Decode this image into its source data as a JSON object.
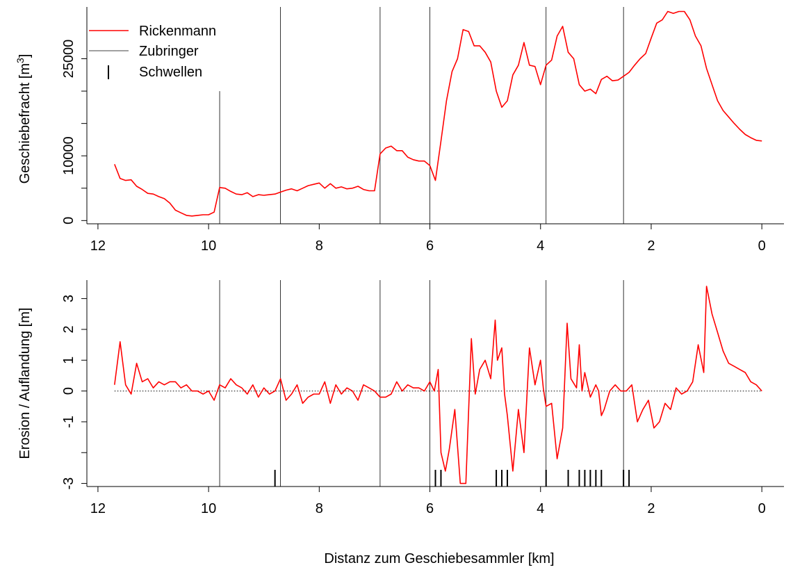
{
  "xlabel": "Distanz zum Geschiebesammler [km]",
  "colors": {
    "series": "#ff0000",
    "tributary": "#000000",
    "axis": "#000000"
  },
  "legend": {
    "placement": "top-left",
    "entries": [
      {
        "label": "Rickenmann",
        "symbol": "red-line"
      },
      {
        "label": "Zubringer",
        "symbol": "thin-black-line"
      },
      {
        "label": "Schwellen",
        "symbol": "vertical-tick"
      }
    ]
  },
  "chart_data": [
    {
      "type": "line",
      "ylabel_prefix": "Geschiebefracht  [m",
      "ylabel_sup": "3",
      "ylabel_suffix": "]",
      "xlim": [
        12.2,
        -0.4
      ],
      "ylim": [
        -500,
        33000
      ],
      "x_reversed": true,
      "x_ticks": [
        12,
        10,
        8,
        6,
        4,
        2,
        0
      ],
      "y_ticks": [
        0,
        5000,
        10000,
        15000,
        20000,
        25000
      ],
      "y_tick_labels": [
        "0",
        "",
        "10000",
        "",
        "",
        "25000"
      ],
      "tributaries_km": [
        9.8,
        8.7,
        6.9,
        6.0,
        3.9,
        2.5
      ],
      "tributary_top": [
        20000,
        null,
        null,
        null,
        null,
        null
      ],
      "series": [
        {
          "name": "Rickenmann",
          "x": [
            11.7,
            11.6,
            11.5,
            11.4,
            11.3,
            11.2,
            11.1,
            11.0,
            10.9,
            10.8,
            10.7,
            10.6,
            10.5,
            10.4,
            10.3,
            10.2,
            10.1,
            10.0,
            9.9,
            9.8,
            9.7,
            9.6,
            9.5,
            9.4,
            9.3,
            9.2,
            9.1,
            9.0,
            8.9,
            8.8,
            8.7,
            8.6,
            8.5,
            8.4,
            8.3,
            8.2,
            8.1,
            8.0,
            7.9,
            7.8,
            7.7,
            7.6,
            7.5,
            7.4,
            7.3,
            7.2,
            7.1,
            7.0,
            6.9,
            6.8,
            6.7,
            6.6,
            6.5,
            6.4,
            6.3,
            6.2,
            6.1,
            6.0,
            5.9,
            5.8,
            5.7,
            5.6,
            5.5,
            5.4,
            5.3,
            5.2,
            5.1,
            5.0,
            4.9,
            4.8,
            4.7,
            4.6,
            4.5,
            4.4,
            4.3,
            4.2,
            4.1,
            4.0,
            3.9,
            3.8,
            3.7,
            3.6,
            3.5,
            3.4,
            3.3,
            3.2,
            3.1,
            3.0,
            2.9,
            2.8,
            2.7,
            2.6,
            2.5,
            2.4,
            2.3,
            2.2,
            2.1,
            2.0,
            1.9,
            1.8,
            1.7,
            1.6,
            1.5,
            1.4,
            1.3,
            1.2,
            1.1,
            1.0,
            0.9,
            0.8,
            0.7,
            0.6,
            0.5,
            0.4,
            0.3,
            0.2,
            0.1,
            0.0
          ],
          "y": [
            8700,
            6500,
            6200,
            6300,
            5300,
            4800,
            4200,
            4100,
            3700,
            3400,
            2700,
            1600,
            1200,
            800,
            700,
            800,
            900,
            900,
            1300,
            5100,
            5000,
            4500,
            4100,
            4000,
            4300,
            3700,
            4000,
            3900,
            4000,
            4100,
            4400,
            4700,
            4900,
            4600,
            5000,
            5400,
            5600,
            5800,
            5000,
            5700,
            5000,
            5200,
            4900,
            5000,
            5300,
            4800,
            4600,
            4600,
            10300,
            11200,
            11500,
            10800,
            10800,
            9800,
            9400,
            9200,
            9200,
            8500,
            6200,
            12300,
            18500,
            23000,
            25000,
            29500,
            29200,
            27000,
            27000,
            26000,
            24500,
            20000,
            17500,
            18500,
            22500,
            24000,
            27500,
            24000,
            23800,
            21000,
            24000,
            24800,
            28500,
            30000,
            26000,
            25000,
            21000,
            20000,
            20300,
            19600,
            21800,
            22300,
            21600,
            21700,
            22300,
            22900,
            24000,
            25000,
            25800,
            28200,
            30500,
            31000,
            32300,
            32000,
            32300,
            32300,
            31000,
            28500,
            27000,
            23500,
            21000,
            18500,
            17000,
            16000,
            15000,
            14100,
            13300,
            12800,
            12400,
            12300
          ]
        }
      ]
    },
    {
      "type": "line",
      "ylabel": "Erosion / Auflandung [m]",
      "xlim": [
        12.2,
        -0.4
      ],
      "ylim": [
        -3.1,
        3.6
      ],
      "x_reversed": true,
      "x_ticks": [
        12,
        10,
        8,
        6,
        4,
        2,
        0
      ],
      "y_ticks": [
        -3,
        -2,
        -1,
        0,
        1,
        2,
        3
      ],
      "y_tick_labels": [
        "-3",
        "",
        "-1",
        "0",
        "1",
        "2",
        "3"
      ],
      "zero_line": "dotted",
      "tributaries_km": [
        9.8,
        8.7,
        6.9,
        6.0,
        3.9,
        2.5
      ],
      "schwellen_km": [
        8.8,
        5.9,
        5.8,
        4.8,
        4.7,
        4.6,
        3.9,
        3.5,
        3.3,
        3.2,
        3.1,
        3.0,
        2.9,
        2.5,
        2.4
      ],
      "series": [
        {
          "name": "Rickenmann",
          "x": [
            11.7,
            11.6,
            11.5,
            11.4,
            11.3,
            11.2,
            11.1,
            11.0,
            10.9,
            10.8,
            10.7,
            10.6,
            10.5,
            10.4,
            10.3,
            10.2,
            10.1,
            10.0,
            9.9,
            9.8,
            9.7,
            9.6,
            9.5,
            9.4,
            9.3,
            9.2,
            9.1,
            9.0,
            8.9,
            8.8,
            8.7,
            8.6,
            8.5,
            8.4,
            8.3,
            8.2,
            8.1,
            8.0,
            7.9,
            7.8,
            7.7,
            7.6,
            7.5,
            7.4,
            7.3,
            7.2,
            7.1,
            7.0,
            6.9,
            6.8,
            6.7,
            6.6,
            6.5,
            6.4,
            6.3,
            6.2,
            6.1,
            6.0,
            5.92,
            5.85,
            5.8,
            5.72,
            5.65,
            5.55,
            5.45,
            5.35,
            5.25,
            5.18,
            5.1,
            5.0,
            4.9,
            4.82,
            4.78,
            4.7,
            4.65,
            4.6,
            4.5,
            4.4,
            4.3,
            4.2,
            4.1,
            4.0,
            3.95,
            3.9,
            3.8,
            3.7,
            3.6,
            3.52,
            3.45,
            3.35,
            3.3,
            3.25,
            3.2,
            3.15,
            3.1,
            3.05,
            3.0,
            2.95,
            2.9,
            2.85,
            2.75,
            2.65,
            2.55,
            2.45,
            2.35,
            2.25,
            2.15,
            2.05,
            1.95,
            1.85,
            1.75,
            1.65,
            1.55,
            1.45,
            1.35,
            1.25,
            1.15,
            1.05,
            1.0,
            0.9,
            0.8,
            0.7,
            0.6,
            0.5,
            0.4,
            0.3,
            0.2,
            0.1,
            0.0
          ],
          "y": [
            0.2,
            1.6,
            0.2,
            -0.1,
            0.9,
            0.3,
            0.4,
            0.1,
            0.3,
            0.2,
            0.3,
            0.3,
            0.1,
            0.2,
            0.0,
            0.0,
            -0.1,
            0.0,
            -0.3,
            0.2,
            0.1,
            0.4,
            0.2,
            0.1,
            -0.1,
            0.2,
            -0.2,
            0.1,
            -0.1,
            0.0,
            0.4,
            -0.3,
            -0.1,
            0.2,
            -0.4,
            -0.2,
            -0.1,
            -0.1,
            0.3,
            -0.4,
            0.2,
            -0.1,
            0.1,
            0.0,
            -0.3,
            0.2,
            0.1,
            0.0,
            -0.2,
            -0.2,
            -0.1,
            0.3,
            0.0,
            0.2,
            0.1,
            0.1,
            0.0,
            0.3,
            0.0,
            0.7,
            -2.0,
            -2.6,
            -1.9,
            -0.6,
            -3.0,
            -3.0,
            1.7,
            -0.1,
            0.7,
            1.0,
            0.4,
            2.3,
            1.0,
            1.4,
            -0.1,
            -0.8,
            -2.6,
            -0.6,
            -2.0,
            1.4,
            0.2,
            1.0,
            0.1,
            -0.5,
            -0.4,
            -2.2,
            -1.2,
            2.2,
            0.4,
            0.1,
            1.5,
            0.0,
            0.6,
            0.2,
            -0.2,
            0.0,
            0.2,
            0.0,
            -0.8,
            -0.6,
            0.0,
            0.2,
            0.0,
            0.0,
            0.2,
            -1.0,
            -0.6,
            -0.3,
            -1.2,
            -1.0,
            -0.4,
            -0.6,
            0.1,
            -0.1,
            0.0,
            0.3,
            1.5,
            0.6,
            3.4,
            2.5,
            1.9,
            1.3,
            0.9,
            0.8,
            0.7,
            0.6,
            0.3,
            0.2,
            0.0
          ]
        }
      ]
    }
  ]
}
